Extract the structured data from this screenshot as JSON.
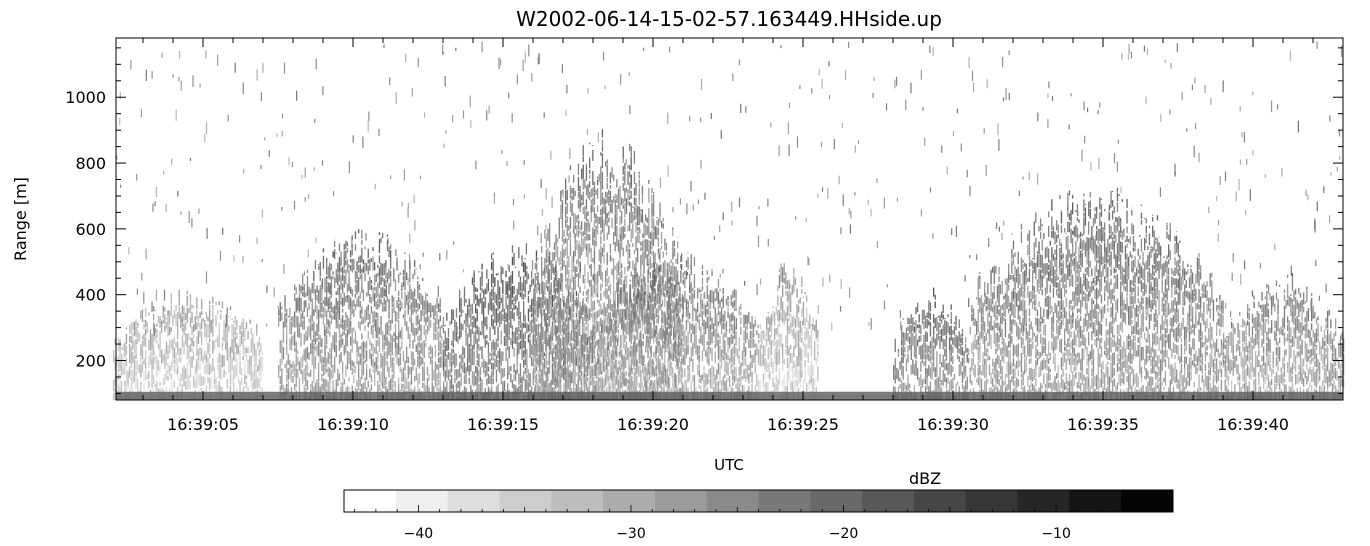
{
  "chart_data": [
    {
      "type": "heatmap",
      "title": "W2002-06-14-15-02-57.163449.HHside.up",
      "xlabel": "UTC",
      "ylabel": "Range [m]",
      "x_ticks": [
        "16:39:05",
        "16:39:10",
        "16:39:15",
        "16:39:20",
        "16:39:25",
        "16:39:30",
        "16:39:35",
        "16:39:40"
      ],
      "x_tick_seconds": [
        5,
        10,
        15,
        20,
        25,
        30,
        35,
        40
      ],
      "xlim_seconds": [
        2.1,
        43.0
      ],
      "y_ticks": [
        200,
        400,
        600,
        800,
        1000
      ],
      "ylim": [
        80,
        1180
      ],
      "echo_regions": [
        {
          "t_start": 2,
          "t_end": 7,
          "range_top": 380,
          "intensity_dbz": -30
        },
        {
          "t_start": 7.5,
          "t_end": 13,
          "range_top": 550,
          "intensity_dbz": -22
        },
        {
          "t_start": 13,
          "t_end": 18,
          "range_top": 500,
          "intensity_dbz": -18
        },
        {
          "t_start": 16,
          "t_end": 21,
          "range_top": 800,
          "intensity_dbz": -24
        },
        {
          "t_start": 18,
          "t_end": 23.5,
          "range_top": 480,
          "intensity_dbz": -24
        },
        {
          "t_start": 23.5,
          "t_end": 25.5,
          "range_top": 450,
          "intensity_dbz": -30
        },
        {
          "t_start": 28,
          "t_end": 30.5,
          "range_top": 380,
          "intensity_dbz": -20
        },
        {
          "t_start": 30.5,
          "t_end": 39,
          "range_top": 650,
          "intensity_dbz": -22
        },
        {
          "t_start": 39,
          "t_end": 43,
          "range_top": 420,
          "intensity_dbz": -24
        }
      ],
      "grid": false
    },
    {
      "type": "colorbar",
      "label": "dBZ",
      "range": [
        -43.5,
        -4.5
      ],
      "ticks": [
        -40,
        -30,
        -20,
        -10
      ],
      "tick_labels": [
        "−40",
        "−30",
        "−20",
        "−10"
      ],
      "steps": 16,
      "colors": [
        "#ffffff",
        "#efefef",
        "#dedede",
        "#cdcdcd",
        "#bdbdbd",
        "#acacac",
        "#9b9b9b",
        "#8a8a8a",
        "#797979",
        "#696969",
        "#585858",
        "#474747",
        "#363636",
        "#262626",
        "#151515",
        "#040404"
      ]
    }
  ]
}
